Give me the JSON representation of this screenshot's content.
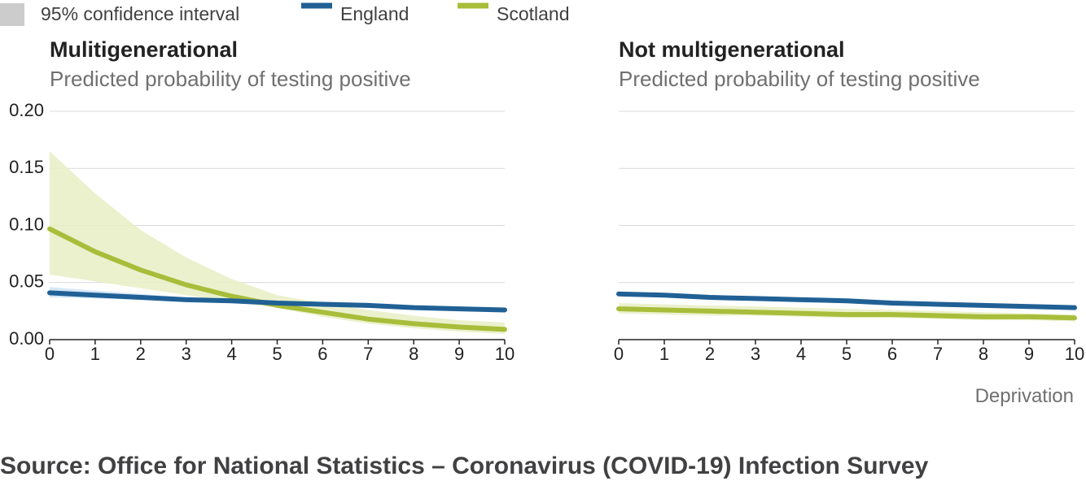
{
  "legend": {
    "ci_label": "95% confidence interval",
    "england_label": "England",
    "scotland_label": "Scotland"
  },
  "colors": {
    "england": "#206095",
    "scotland": "#a8bd3a",
    "england_ci": "#cfe3f4",
    "scotland_ci": "#e8efc4",
    "ci_swatch": "#cccccc",
    "grid": "#d9d9d9",
    "axis": "#222222"
  },
  "source": "Source: Office for National Statistics – Coronavirus (COVID-19) Infection Survey",
  "chart_data": [
    {
      "type": "line",
      "title": "Mulitigenerational",
      "subtitle": "Predicted probability of testing positive",
      "xlabel": "",
      "xlim": [
        0,
        10
      ],
      "ylim": [
        0,
        0.2
      ],
      "x_ticks": [
        0,
        1,
        2,
        3,
        4,
        5,
        6,
        7,
        8,
        9,
        10
      ],
      "y_ticks": [
        "0.00",
        "0.05",
        "0.10",
        "0.15",
        "0.20"
      ],
      "grid": "horizontal",
      "x": [
        0,
        1,
        2,
        3,
        4,
        5,
        6,
        7,
        8,
        9,
        10
      ],
      "series": [
        {
          "name": "England",
          "values": [
            0.041,
            0.039,
            0.037,
            0.035,
            0.034,
            0.032,
            0.031,
            0.03,
            0.028,
            0.027,
            0.026
          ],
          "ci_lower": [
            0.037,
            0.036,
            0.035,
            0.034,
            0.032,
            0.031,
            0.03,
            0.028,
            0.027,
            0.026,
            0.024
          ],
          "ci_upper": [
            0.046,
            0.043,
            0.04,
            0.037,
            0.035,
            0.034,
            0.032,
            0.031,
            0.03,
            0.029,
            0.028
          ]
        },
        {
          "name": "Scotland",
          "values": [
            0.097,
            0.077,
            0.061,
            0.048,
            0.038,
            0.03,
            0.024,
            0.018,
            0.014,
            0.011,
            0.009
          ],
          "ci_lower": [
            0.057,
            0.051,
            0.045,
            0.039,
            0.033,
            0.028,
            0.02,
            0.014,
            0.01,
            0.007,
            0.005
          ],
          "ci_upper": [
            0.165,
            0.128,
            0.096,
            0.072,
            0.053,
            0.039,
            0.032,
            0.026,
            0.021,
            0.017,
            0.015
          ]
        }
      ]
    },
    {
      "type": "line",
      "title": "Not multigenerational",
      "subtitle": "Predicted probability of testing positive",
      "xlabel": "Deprivation",
      "xlim": [
        0,
        10
      ],
      "ylim": [
        0,
        0.2
      ],
      "x_ticks": [
        0,
        1,
        2,
        3,
        4,
        5,
        6,
        7,
        8,
        9,
        10
      ],
      "y_ticks": [],
      "grid": "horizontal",
      "x": [
        0,
        1,
        2,
        3,
        4,
        5,
        6,
        7,
        8,
        9,
        10
      ],
      "series": [
        {
          "name": "England",
          "values": [
            0.04,
            0.039,
            0.037,
            0.036,
            0.035,
            0.034,
            0.032,
            0.031,
            0.03,
            0.029,
            0.028
          ],
          "ci_lower": [
            0.039,
            0.038,
            0.036,
            0.035,
            0.034,
            0.033,
            0.031,
            0.03,
            0.029,
            0.028,
            0.027
          ],
          "ci_upper": [
            0.041,
            0.04,
            0.038,
            0.037,
            0.036,
            0.035,
            0.033,
            0.032,
            0.031,
            0.03,
            0.029
          ]
        },
        {
          "name": "Scotland",
          "values": [
            0.027,
            0.026,
            0.025,
            0.024,
            0.023,
            0.022,
            0.022,
            0.021,
            0.02,
            0.02,
            0.019
          ],
          "ci_lower": [
            0.023,
            0.022,
            0.021,
            0.021,
            0.02,
            0.019,
            0.019,
            0.018,
            0.017,
            0.017,
            0.016
          ],
          "ci_upper": [
            0.032,
            0.031,
            0.03,
            0.029,
            0.028,
            0.027,
            0.026,
            0.025,
            0.024,
            0.023,
            0.022
          ]
        }
      ]
    }
  ]
}
